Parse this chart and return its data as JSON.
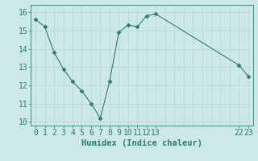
{
  "x": [
    0,
    1,
    2,
    3,
    4,
    5,
    6,
    7,
    8,
    9,
    10,
    11,
    12,
    13,
    22,
    23
  ],
  "y": [
    15.6,
    15.2,
    13.8,
    12.9,
    12.2,
    11.7,
    11.0,
    10.2,
    12.2,
    14.9,
    15.3,
    15.2,
    15.8,
    15.9,
    13.1,
    12.5
  ],
  "line_color": "#2e7d6e",
  "marker": "D",
  "marker_size": 2.5,
  "bg_color": "#cce8e8",
  "grid_color": "#b8d8d8",
  "xlabel": "Humidex (Indice chaleur)",
  "ylim": [
    9.8,
    16.4
  ],
  "xlim": [
    -0.5,
    23.5
  ],
  "xticks": [
    0,
    1,
    2,
    3,
    4,
    5,
    6,
    7,
    8,
    9,
    10,
    11,
    12,
    13,
    22,
    23
  ],
  "yticks": [
    10,
    11,
    12,
    13,
    14,
    15,
    16
  ],
  "font_size": 7,
  "xlabel_fontsize": 7.5
}
